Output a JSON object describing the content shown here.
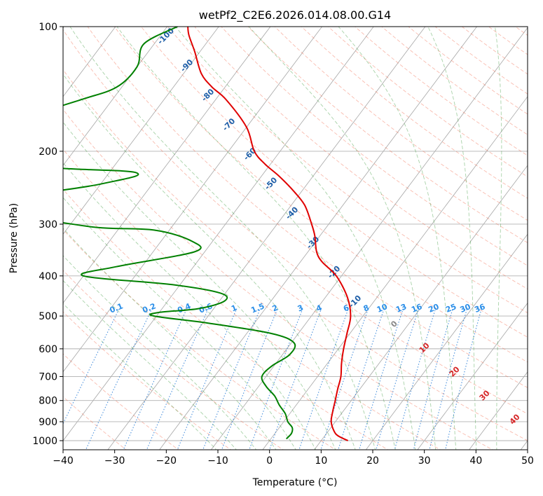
{
  "chart_data": {
    "type": "line",
    "chart_kind": "skew-T log-p diagram",
    "title": "wetPf2_C2E6.2026.014.08.00.G14",
    "xlabel": "Temperature (°C)",
    "ylabel": "Pressure (hPa)",
    "xlim": [
      -40,
      50
    ],
    "ylim": [
      1050,
      100
    ],
    "y_scale": "log",
    "x_ticks": [
      "−40",
      "−30",
      "−20",
      "−10",
      "0",
      "10",
      "20",
      "30",
      "40",
      "50"
    ],
    "x_tick_values": [
      -40,
      -30,
      -20,
      -10,
      0,
      10,
      20,
      30,
      40,
      50
    ],
    "y_ticks": [
      "100",
      "200",
      "300",
      "400",
      "500",
      "600",
      "700",
      "800",
      "900",
      "1000"
    ],
    "y_tick_values": [
      100,
      200,
      300,
      400,
      500,
      600,
      700,
      800,
      900,
      1000
    ],
    "grid": true,
    "series": [
      {
        "id": "temperature",
        "color": "#e00000",
        "points": [
          [
            1000,
            15.2
          ],
          [
            975,
            12.7
          ],
          [
            950,
            11.2
          ],
          [
            900,
            9.2
          ],
          [
            850,
            8.0
          ],
          [
            800,
            6.9
          ],
          [
            750,
            5.7
          ],
          [
            700,
            4.5
          ],
          [
            650,
            2.7
          ],
          [
            600,
            1.0
          ],
          [
            550,
            -0.6
          ],
          [
            500,
            -2.4
          ],
          [
            450,
            -5.8
          ],
          [
            400,
            -11.0
          ],
          [
            370,
            -15.8
          ],
          [
            350,
            -18.3
          ],
          [
            320,
            -21.0
          ],
          [
            300,
            -23.3
          ],
          [
            270,
            -27.4
          ],
          [
            250,
            -31.5
          ],
          [
            230,
            -36.5
          ],
          [
            215,
            -41.0
          ],
          [
            200,
            -45.0
          ],
          [
            175,
            -50.0
          ],
          [
            150,
            -58.0
          ],
          [
            140,
            -62.5
          ],
          [
            130,
            -66.5
          ],
          [
            115,
            -71.0
          ],
          [
            105,
            -74.5
          ],
          [
            100,
            -76.0
          ]
        ]
      },
      {
        "id": "dewpoint",
        "color": "#008000",
        "points": [
          [
            990,
            3.0
          ],
          [
            960,
            3.2
          ],
          [
            930,
            2.5
          ],
          [
            900,
            0.8
          ],
          [
            860,
            -0.9
          ],
          [
            820,
            -3.3
          ],
          [
            780,
            -5.5
          ],
          [
            740,
            -8.5
          ],
          [
            700,
            -10.8
          ],
          [
            660,
            -10.4
          ],
          [
            620,
            -8.6
          ],
          [
            580,
            -9.5
          ],
          [
            550,
            -15.5
          ],
          [
            520,
            -29.0
          ],
          [
            500,
            -40.5
          ],
          [
            490,
            -40.0
          ],
          [
            480,
            -33.0
          ],
          [
            460,
            -29.0
          ],
          [
            440,
            -31.0
          ],
          [
            420,
            -41.5
          ],
          [
            400,
            -60.0
          ],
          [
            380,
            -55.0
          ],
          [
            350,
            -42.0
          ],
          [
            330,
            -44.0
          ],
          [
            310,
            -53.0
          ],
          [
            303,
            -67.0
          ],
          [
            270,
            -89.0
          ],
          [
            240,
            -70.0
          ],
          [
            225,
            -65.0
          ],
          [
            215,
            -86.0
          ],
          [
            180,
            -94.0
          ],
          [
            175,
            -97.0
          ],
          [
            165,
            -94.0
          ],
          [
            150,
            -86.0
          ],
          [
            140,
            -81.0
          ],
          [
            125,
            -80.0
          ],
          [
            110,
            -82.0
          ],
          [
            100,
            -78.0
          ]
        ]
      }
    ],
    "background_lines": {
      "isotherms": {
        "color": "#888888",
        "step": 10
      },
      "dry_adiabats": {
        "color": "#f26b4d",
        "dashed": true
      },
      "moist_adiabats": {
        "color": "#3e9b3e",
        "dashed": true
      },
      "mixing_ratio": {
        "color": "#1f77d4",
        "dotted": true
      }
    },
    "annotations": {
      "moist_adiabat_labels": [
        "-100",
        "-90",
        "-80",
        "-70",
        "-60",
        "-50",
        "-40",
        "-30",
        "-20",
        "-10",
        "0",
        "10",
        "20",
        "30",
        "40"
      ],
      "moist_adiabat_label_values": [
        -100,
        -90,
        -80,
        -70,
        -60,
        -50,
        -40,
        -30,
        -20,
        -10,
        0,
        10,
        20,
        30,
        40
      ],
      "mixing_ratio_labels": [
        "0.1",
        "0.2",
        "0.4",
        "0.6",
        "1",
        "1.5",
        "2",
        "3",
        "4",
        "6",
        "8",
        "10",
        "13",
        "16",
        "20",
        "25",
        "30",
        "36"
      ],
      "mixing_ratio_label_values": [
        0.1,
        0.2,
        0.4,
        0.6,
        1,
        1.5,
        2,
        3,
        4,
        6,
        8,
        10,
        13,
        16,
        20,
        25,
        30,
        36
      ],
      "label_colors": {
        "cold": "#1f5fa8",
        "zero": "#888888",
        "warm": "#d62728",
        "mixing": "#2a8ee8"
      }
    }
  }
}
